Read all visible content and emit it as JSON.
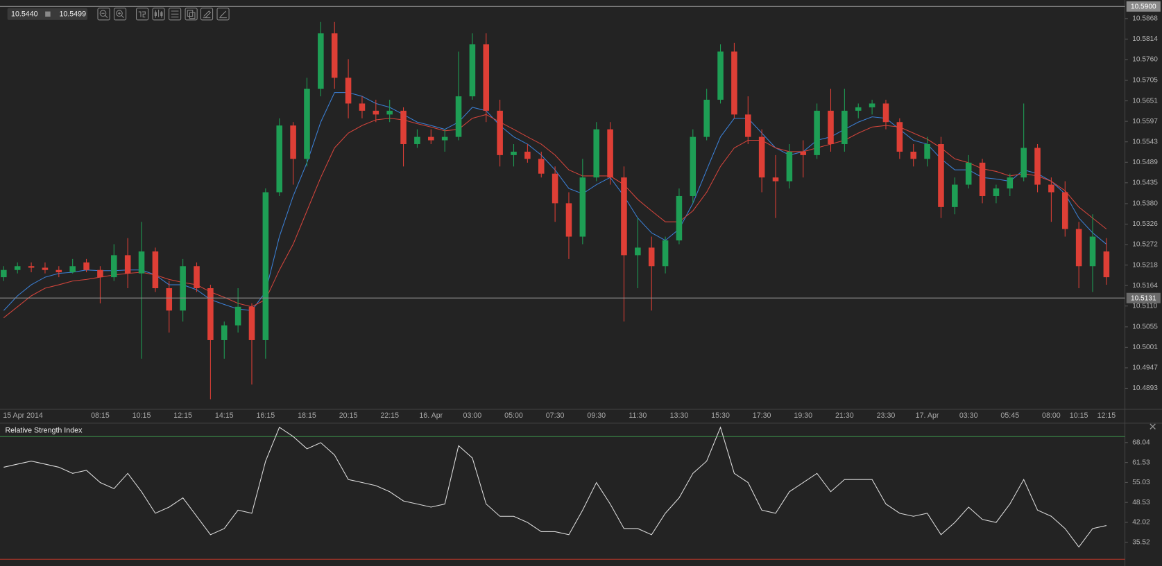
{
  "chart_data": [
    {
      "type": "candlestick",
      "quotes": [
        "10.5440",
        "10.5499"
      ],
      "up_color": "#1e9e55",
      "down_color": "#de3f36",
      "categories": [
        null,
        "15 Apr 2014",
        null,
        null,
        null,
        null,
        null,
        "08:15",
        null,
        null,
        "10:15",
        null,
        null,
        "12:15",
        null,
        null,
        "14:15",
        null,
        null,
        "16:15",
        null,
        null,
        "18:15",
        null,
        null,
        "20:15",
        null,
        null,
        "22:15",
        null,
        null,
        "16. Apr",
        null,
        null,
        "03:00",
        null,
        null,
        "05:00",
        null,
        null,
        "07:30",
        null,
        null,
        "09:30",
        null,
        null,
        "11:30",
        null,
        null,
        "13:30",
        null,
        null,
        "15:30",
        null,
        null,
        "17:30",
        null,
        null,
        "19:30",
        null,
        null,
        "21:30",
        null,
        null,
        "23:30",
        null,
        null,
        "17. Apr",
        null,
        null,
        "03:30",
        null,
        null,
        "05:45",
        null,
        null,
        "08:00",
        null,
        "10:15",
        null,
        "12:15"
      ],
      "open": [
        10.5186,
        10.5205,
        10.5215,
        10.5211,
        10.5205,
        10.5199,
        10.5225,
        10.5205,
        10.5186,
        10.5244,
        10.5196,
        10.5254,
        10.5157,
        10.5098,
        10.5215,
        10.5157,
        10.502,
        10.5059,
        10.5108,
        10.502,
        10.541,
        10.5586,
        10.5498,
        10.5683,
        10.5829,
        10.5712,
        10.5644,
        10.5625,
        10.5615,
        10.5625,
        10.5537,
        10.5556,
        10.5547,
        10.5556,
        10.5663,
        10.58,
        10.5625,
        10.5508,
        10.5517,
        10.5498,
        10.5459,
        10.5381,
        10.5293,
        10.5449,
        10.5576,
        10.5449,
        10.5244,
        10.5264,
        10.5215,
        10.5283,
        10.54,
        10.5556,
        10.5654,
        10.5781,
        10.5615,
        10.5556,
        10.5449,
        10.5439,
        10.5517,
        10.5508,
        10.5625,
        10.5537,
        10.5625,
        10.5634,
        10.5644,
        10.5595,
        10.5517,
        10.5498,
        10.5537,
        10.5371,
        10.543,
        10.5488,
        10.54,
        10.542,
        10.5449,
        10.5527,
        10.543,
        10.541,
        10.5313,
        10.5215,
        10.5254
      ],
      "high": [
        10.5215,
        10.5225,
        10.5225,
        10.5225,
        10.5215,
        10.5234,
        10.5234,
        10.5215,
        10.5273,
        10.5289,
        10.5332,
        10.5264,
        10.5176,
        10.5234,
        10.5225,
        10.5166,
        10.5069,
        10.5157,
        10.5117,
        10.542,
        10.5605,
        10.5595,
        10.5712,
        10.5859,
        10.5859,
        10.5761,
        10.5663,
        10.5654,
        10.5654,
        10.5634,
        10.5576,
        10.5576,
        10.5576,
        10.5781,
        10.5829,
        10.5829,
        10.5654,
        10.5537,
        10.5537,
        10.5517,
        10.5478,
        10.541,
        10.5498,
        10.5595,
        10.5595,
        10.5478,
        10.5342,
        10.5293,
        10.5293,
        10.542,
        10.5576,
        10.5683,
        10.58,
        10.5804,
        10.5663,
        10.5576,
        10.5508,
        10.5537,
        10.5547,
        10.5644,
        10.5683,
        10.5683,
        10.5644,
        10.5654,
        10.5654,
        10.5605,
        10.5537,
        10.5556,
        10.5556,
        10.5449,
        10.5508,
        10.5498,
        10.543,
        10.5459,
        10.5644,
        10.5537,
        10.5449,
        10.5439,
        10.5332,
        10.5352,
        10.5289
      ],
      "low": [
        10.5176,
        10.5196,
        10.5199,
        10.5196,
        10.5186,
        10.5196,
        10.5199,
        10.5117,
        10.5176,
        10.5157,
        10.4971,
        10.5147,
        10.504,
        10.5069,
        10.5147,
        10.4864,
        10.4971,
        10.504,
        10.4903,
        10.4971,
        10.54,
        10.543,
        10.5478,
        10.5663,
        10.5683,
        10.5605,
        10.5605,
        10.5595,
        10.5595,
        10.5478,
        10.5527,
        10.5537,
        10.5517,
        10.5547,
        10.5654,
        10.5595,
        10.5478,
        10.5478,
        10.5488,
        10.5449,
        10.5332,
        10.5234,
        10.5273,
        10.5439,
        10.543,
        10.5069,
        10.5157,
        10.5098,
        10.5196,
        10.5273,
        10.5381,
        10.5547,
        10.5644,
        10.5605,
        10.5537,
        10.541,
        10.5342,
        10.542,
        10.5449,
        10.5498,
        10.5517,
        10.5517,
        10.5605,
        10.5615,
        10.5576,
        10.5498,
        10.5478,
        10.5478,
        10.5342,
        10.5352,
        10.542,
        10.5381,
        10.5381,
        10.54,
        10.5439,
        10.541,
        10.5332,
        10.5293,
        10.5157,
        10.5147,
        10.5166
      ],
      "close": [
        10.5205,
        10.5215,
        10.5211,
        10.5205,
        10.5199,
        10.5215,
        10.5205,
        10.5186,
        10.5244,
        10.5196,
        10.5254,
        10.5157,
        10.5098,
        10.5215,
        10.5157,
        10.502,
        10.5059,
        10.5108,
        10.502,
        10.541,
        10.5586,
        10.5498,
        10.5683,
        10.5829,
        10.5712,
        10.5644,
        10.5625,
        10.5615,
        10.5625,
        10.5537,
        10.5556,
        10.5547,
        10.5556,
        10.5663,
        10.58,
        10.5625,
        10.5508,
        10.5517,
        10.5498,
        10.5459,
        10.5381,
        10.5293,
        10.5449,
        10.5576,
        10.5449,
        10.5244,
        10.5264,
        10.5215,
        10.5283,
        10.54,
        10.5556,
        10.5654,
        10.5781,
        10.5615,
        10.5556,
        10.5449,
        10.5439,
        10.5517,
        10.5508,
        10.5625,
        10.5537,
        10.5625,
        10.5634,
        10.5644,
        10.5595,
        10.5517,
        10.5498,
        10.5537,
        10.5371,
        10.543,
        10.5488,
        10.54,
        10.542,
        10.5449,
        10.5527,
        10.543,
        10.541,
        10.5313,
        10.5215,
        10.5293,
        10.5186
      ],
      "series": [
        {
          "color": "#3b7fd4",
          "values": [
            10.5098,
            10.5137,
            10.5166,
            10.5186,
            10.5196,
            10.5199,
            10.5205,
            10.5203,
            10.5203,
            10.5205,
            10.5205,
            10.5192,
            10.5166,
            10.5166,
            10.5153,
            10.5127,
            10.5114,
            10.5102,
            10.5098,
            10.5147,
            10.5293,
            10.54,
            10.5488,
            10.5595,
            10.5673,
            10.5673,
            10.5663,
            10.5644,
            10.5634,
            10.5615,
            10.5595,
            10.5586,
            10.5576,
            10.5595,
            10.5634,
            10.5625,
            10.5586,
            10.5556,
            10.5537,
            10.5508,
            10.5469,
            10.542,
            10.5406,
            10.543,
            10.5449,
            10.54,
            10.5342,
            10.5303,
            10.5283,
            10.5313,
            10.5381,
            10.5469,
            10.5556,
            10.5605,
            10.5605,
            10.5566,
            10.5527,
            10.5508,
            10.5517,
            10.5547,
            10.5556,
            10.5576,
            10.5595,
            10.5609,
            10.5605,
            10.5576,
            10.5547,
            10.5537,
            10.5498,
            10.5469,
            10.5469,
            10.5449,
            10.5445,
            10.5439,
            10.5469,
            10.5459,
            10.5439,
            10.5406,
            10.5342,
            10.5303,
            10.5273
          ]
        },
        {
          "color": "#d2443b",
          "values": [
            10.5079,
            10.5108,
            10.5137,
            10.5157,
            10.5166,
            10.5176,
            10.518,
            10.5186,
            10.5192,
            10.5196,
            10.5199,
            10.5192,
            10.518,
            10.5172,
            10.5166,
            10.5147,
            10.5133,
            10.5117,
            10.5108,
            10.5127,
            10.5205,
            10.5273,
            10.5361,
            10.5449,
            10.5527,
            10.5566,
            10.5586,
            10.5601,
            10.5605,
            10.5601,
            10.5591,
            10.5582,
            10.5572,
            10.5576,
            10.5605,
            10.5615,
            10.5595,
            10.5576,
            10.5556,
            10.5537,
            10.5508,
            10.5469,
            10.5453,
            10.5453,
            10.5453,
            10.543,
            10.5391,
            10.5361,
            10.5332,
            10.5332,
            10.5361,
            10.541,
            10.5478,
            10.5527,
            10.5547,
            10.5547,
            10.5527,
            10.5517,
            10.5517,
            10.5527,
            10.5537,
            10.5547,
            10.5566,
            10.5582,
            10.5586,
            10.5582,
            10.5566,
            10.555,
            10.5527,
            10.5498,
            10.5488,
            10.5472,
            10.5465,
            10.5453,
            10.5459,
            10.5453,
            10.5439,
            10.5414,
            10.5371,
            10.5342,
            10.5313
          ]
        }
      ],
      "ylim": [
        10.4838,
        10.5917
      ],
      "yticks": [
        10.5868,
        10.5814,
        {
          "value": 10.576,
          "label": "10.5760"
        },
        10.5705,
        10.5651,
        10.5597,
        10.5543,
        10.5489,
        10.5435,
        {
          "value": 10.538,
          "label": "10.5380"
        },
        10.5326,
        10.5272,
        10.5218,
        10.5164,
        {
          "value": 10.511,
          "label": "10.5110"
        },
        10.5055,
        10.5001,
        10.4947,
        10.4893
      ],
      "hlines": [
        {
          "value": 10.59,
          "label": "10.5900"
        },
        {
          "value": 10.5131,
          "label": "10.5131"
        }
      ]
    },
    {
      "type": "line",
      "title": "Relative Strength Index",
      "color": "#dcdcdc",
      "values": [
        60,
        61,
        62,
        61,
        60,
        58,
        59,
        55,
        53,
        58,
        52,
        45,
        47,
        50,
        44,
        38,
        40,
        46,
        45,
        62,
        73,
        70,
        66,
        68,
        64,
        56,
        55,
        54,
        52,
        49,
        48,
        47,
        48,
        67,
        63,
        48,
        44,
        44,
        42,
        39,
        39,
        38,
        46,
        55,
        48,
        40,
        40,
        38,
        45,
        50,
        58,
        62,
        73,
        58,
        55,
        46,
        45,
        52,
        55,
        58,
        52,
        56,
        56,
        56,
        48,
        45,
        44,
        45,
        38,
        42,
        47,
        43,
        42,
        48,
        56,
        46,
        44,
        40,
        34,
        40,
        41
      ],
      "ylim": [
        27.8,
        74.1
      ],
      "yticks": [
        68.04,
        61.53,
        55.03,
        48.53,
        42.02,
        35.52
      ],
      "levels": [
        {
          "value": 70,
          "color": "#3f9a4e"
        },
        {
          "value": 30,
          "color": "#c0392b"
        }
      ]
    }
  ]
}
